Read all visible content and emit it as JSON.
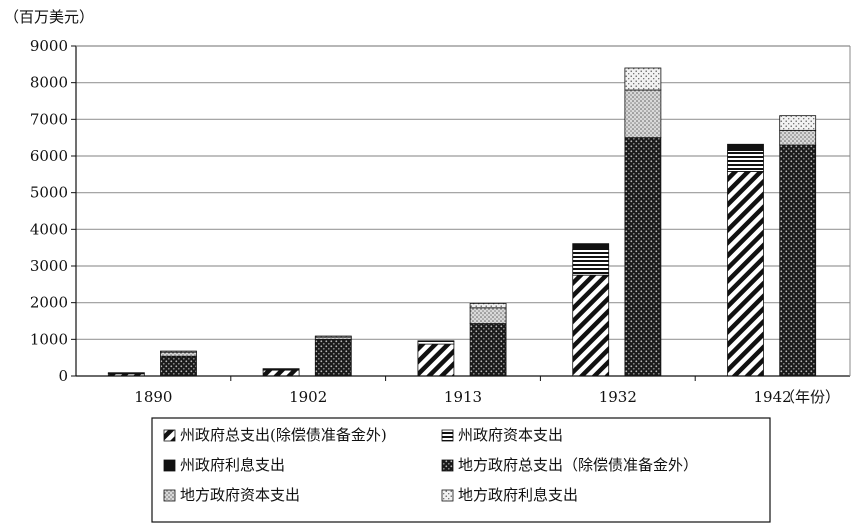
{
  "chart_data": {
    "type": "bar",
    "subtype": "stacked-grouped",
    "yaxis_unit_label": "（百万美元）",
    "xaxis_unit_label": "（年份）",
    "ylim": [
      0,
      9000
    ],
    "yticks": [
      0,
      1000,
      2000,
      3000,
      4000,
      5000,
      6000,
      7000,
      8000,
      9000
    ],
    "ytick_labels": [
      "0",
      "1000",
      "2000",
      "3000",
      "4000",
      "5000",
      "6000",
      "7000",
      "8000",
      "9000"
    ],
    "grid": "horizontal",
    "legend_position": "bottom",
    "categories": [
      "1890",
      "1902",
      "1913",
      "1932",
      "1942"
    ],
    "groups": [
      {
        "name": "州政府",
        "series": [
          {
            "name": "州政府总支出(除偿债准备金外)",
            "pattern": "diagonal-hatch",
            "values": [
              60,
              160,
              870,
              2750,
              5580
            ]
          },
          {
            "name": "州政府资本支出",
            "pattern": "horizontal-stripes",
            "values": [
              20,
              30,
              70,
              700,
              570
            ]
          },
          {
            "name": "州政府利息支出",
            "pattern": "solid-black",
            "values": [
              10,
              10,
              20,
              160,
              170
            ]
          }
        ]
      },
      {
        "name": "地方政府",
        "series": [
          {
            "name": "地方政府总支出（除偿债准备金外）",
            "pattern": "dark-dotted",
            "values": [
              540,
              1000,
              1430,
              6500,
              6300
            ]
          },
          {
            "name": "地方政府资本支出",
            "pattern": "light-dotted",
            "values": [
              110,
              60,
              430,
              1300,
              400
            ]
          },
          {
            "name": "地方政府利息支出",
            "pattern": "sparse-dots",
            "values": [
              30,
              30,
              120,
              600,
              400
            ]
          }
        ]
      }
    ],
    "legend": [
      "州政府总支出(除偿债准备金外)",
      "州政府资本支出",
      "州政府利息支出",
      "地方政府总支出（除偿债准备金外）",
      "地方政府资本支出",
      "地方政府利息支出"
    ]
  }
}
